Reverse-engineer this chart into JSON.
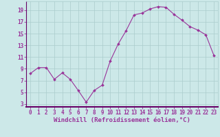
{
  "xlabel": "Windchill (Refroidissement éolien,°C)",
  "x": [
    0,
    1,
    2,
    3,
    4,
    5,
    6,
    7,
    8,
    9,
    10,
    11,
    12,
    13,
    14,
    15,
    16,
    17,
    18,
    19,
    20,
    21,
    22,
    23
  ],
  "y": [
    8.2,
    9.2,
    9.2,
    7.2,
    8.3,
    7.2,
    5.3,
    3.3,
    5.3,
    6.2,
    10.3,
    13.2,
    15.5,
    18.2,
    18.5,
    19.2,
    19.6,
    19.5,
    18.3,
    17.3,
    16.2,
    15.6,
    14.8,
    11.3
  ],
  "line_color": "#993399",
  "marker_color": "#993399",
  "bg_color": "#cce8e8",
  "plot_bg_color": "#cce8e8",
  "grid_color": "#aacccc",
  "bottom_bar_color": "#660066",
  "tick_color": "#993399",
  "label_color": "#993399",
  "ylim": [
    2.5,
    20.5
  ],
  "xlim": [
    -0.5,
    23.5
  ],
  "yticks": [
    3,
    5,
    7,
    9,
    11,
    13,
    15,
    17,
    19
  ],
  "xticks": [
    0,
    1,
    2,
    3,
    4,
    5,
    6,
    7,
    8,
    9,
    10,
    11,
    12,
    13,
    14,
    15,
    16,
    17,
    18,
    19,
    20,
    21,
    22,
    23
  ],
  "tick_fontsize": 5.5,
  "label_fontsize": 6.5
}
